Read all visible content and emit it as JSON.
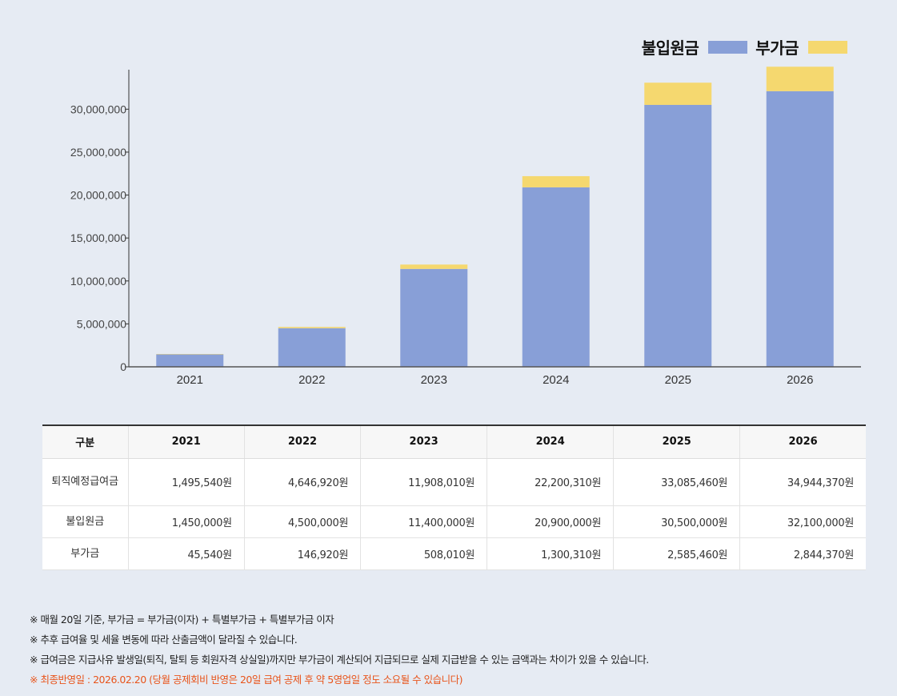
{
  "legend": {
    "principal_label": "불입원금",
    "extra_label": "부가금"
  },
  "colors": {
    "principal": "#889fd7",
    "extra": "#f5d86f"
  },
  "chart_data": {
    "type": "bar",
    "stacked": true,
    "categories": [
      "2021",
      "2022",
      "2023",
      "2024",
      "2025",
      "2026"
    ],
    "series": [
      {
        "name": "불입원금",
        "values": [
          1450000,
          4500000,
          11400000,
          20900000,
          30500000,
          32100000
        ]
      },
      {
        "name": "부가금",
        "values": [
          45540,
          146920,
          508010,
          1300310,
          2585460,
          2844370
        ]
      }
    ],
    "yticks": [
      0,
      5000000,
      10000000,
      15000000,
      20000000,
      25000000,
      30000000
    ],
    "ytick_labels": [
      "0",
      "5,000,000",
      "10,000,000",
      "15,000,000",
      "20,000,000",
      "25,000,000",
      "30,000,000"
    ],
    "ylim": [
      0,
      34600000
    ],
    "grid": false,
    "legend_position": "top-right"
  },
  "table": {
    "header": [
      "구분",
      "2021",
      "2022",
      "2023",
      "2024",
      "2025",
      "2026"
    ],
    "rows": [
      {
        "label": "퇴직예정급여금",
        "cells": [
          "1,495,540원",
          "4,646,920원",
          "11,908,010원",
          "22,200,310원",
          "33,085,460원",
          "34,944,370원"
        ]
      },
      {
        "label": "불입원금",
        "cells": [
          "1,450,000원",
          "4,500,000원",
          "11,400,000원",
          "20,900,000원",
          "30,500,000원",
          "32,100,000원"
        ]
      },
      {
        "label": "부가금",
        "cells": [
          "45,540원",
          "146,920원",
          "508,010원",
          "1,300,310원",
          "2,585,460원",
          "2,844,370원"
        ]
      }
    ]
  },
  "notes": [
    "※ 매월 20일 기준, 부가금 = 부가금(이자) + 특별부가금 + 특별부가금 이자",
    "※ 추후 급여율 및 세율 변동에 따라 산출금액이 달라질 수 있습니다.",
    "※ 급여금은 지급사유 발생일(퇴직, 탈퇴 등 회원자격 상실일)까지만 부가금이 계산되어 지급되므로 실제 지급받을 수 있는 금액과는 차이가 있을 수 있습니다.",
    "※ 최종반영일 : 2026.02.20 (당월 공제회비 반영은 20일 급여 공제 후 약 5영업일 정도 소요될 수 있습니다)"
  ]
}
